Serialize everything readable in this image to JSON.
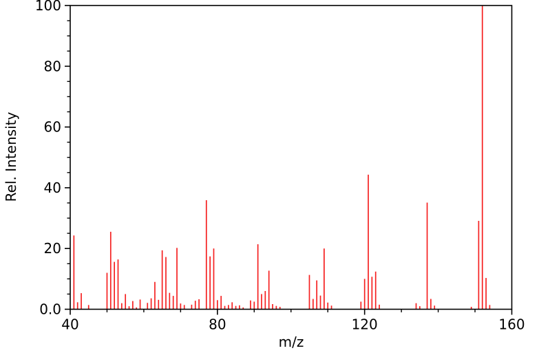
{
  "chart_data": {
    "type": "bar",
    "subtype": "mass-spectrum-sticks",
    "title": "",
    "xlabel": "m/z",
    "ylabel": "Rel. Intensity",
    "xlim": [
      40,
      160
    ],
    "ylim": [
      0,
      100
    ],
    "x_major_ticks": [
      40,
      80,
      120,
      160
    ],
    "x_major_tick_labels": [
      "40",
      "80",
      "120",
      "160"
    ],
    "x_minor_tick_step": 10,
    "y_major_ticks": [
      0,
      20,
      40,
      60,
      80,
      100
    ],
    "y_major_tick_labels": [
      "0.0",
      "20",
      "40",
      "60",
      "80",
      "100"
    ],
    "y_minor_tick_step": 5,
    "grid": false,
    "legend": false,
    "bar_color": "#f52020",
    "axis_color": "#000000",
    "background_color": "#ffffff",
    "x": [
      41,
      42,
      43,
      45,
      50,
      51,
      52,
      53,
      54,
      55,
      56,
      57,
      58,
      59,
      61,
      62,
      63,
      64,
      65,
      66,
      67,
      68,
      69,
      70,
      71,
      73,
      74,
      75,
      77,
      78,
      79,
      80,
      81,
      82,
      83,
      84,
      85,
      86,
      87,
      89,
      90,
      91,
      92,
      93,
      94,
      95,
      96,
      97,
      105,
      106,
      107,
      108,
      109,
      110,
      111,
      119,
      120,
      121,
      122,
      123,
      124,
      134,
      135,
      137,
      138,
      139,
      149,
      151,
      152,
      153,
      154
    ],
    "y": [
      24.3,
      2.3,
      5.3,
      1.4,
      12.0,
      25.5,
      15.6,
      16.4,
      2.0,
      5.0,
      1.0,
      2.7,
      0.6,
      3.2,
      2.1,
      3.6,
      9.0,
      3.1,
      19.4,
      17.2,
      5.4,
      4.4,
      20.2,
      1.9,
      1.4,
      1.5,
      2.8,
      3.3,
      35.9,
      17.4,
      20.0,
      3.0,
      4.4,
      1.1,
      1.4,
      2.3,
      1.1,
      1.3,
      0.6,
      2.9,
      2.5,
      21.4,
      5.0,
      6.0,
      12.7,
      1.7,
      1.1,
      0.8,
      11.3,
      3.4,
      9.5,
      4.5,
      20.0,
      2.2,
      1.2,
      2.5,
      10.0,
      44.3,
      10.7,
      12.4,
      1.5,
      2.0,
      1.0,
      35.1,
      3.4,
      1.2,
      0.8,
      29.1,
      100.0,
      10.3,
      1.4
    ]
  }
}
